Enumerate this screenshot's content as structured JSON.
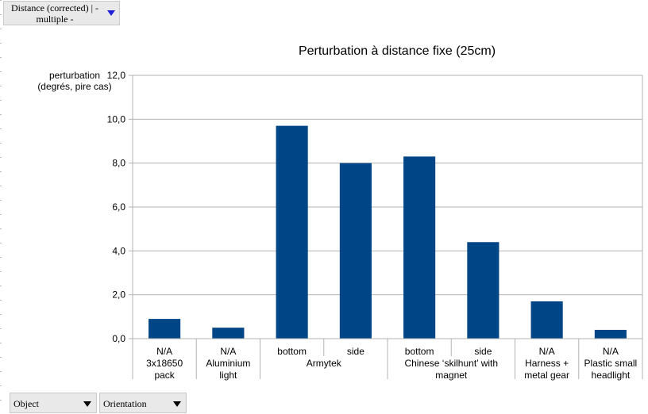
{
  "filter_button": {
    "label_line1": "Distance (corrected) | -",
    "label_line2": "multiple -",
    "arrow_icon": "triangle-down-icon"
  },
  "row_fields": [
    {
      "label": "Object",
      "arrow_icon": "triangle-down-icon"
    },
    {
      "label": "Orientation",
      "arrow_icon": "triangle-down-icon"
    }
  ],
  "chart_data": {
    "type": "bar",
    "title": "Perturbation à distance fixe (25cm)",
    "ylabel_lines": [
      "perturbation",
      "(degrés, pire cas)"
    ],
    "ylim": [
      0,
      12
    ],
    "yticks": [
      "0,0",
      "2,0",
      "4,0",
      "6,0",
      "8,0",
      "10,0",
      "12,0"
    ],
    "grid": true,
    "bar_color": "#004586",
    "groups": [
      {
        "label_lines": [
          "3x18650",
          "pack"
        ],
        "categories": [
          "N/A"
        ],
        "values": [
          0.9
        ]
      },
      {
        "label_lines": [
          "Aluminium",
          "light"
        ],
        "categories": [
          "N/A"
        ],
        "values": [
          0.5
        ]
      },
      {
        "label_lines": [
          "Armytek"
        ],
        "categories": [
          "bottom",
          "side"
        ],
        "values": [
          9.7,
          8.0
        ]
      },
      {
        "label_lines": [
          "Chinese ‘skilhunt’ with",
          "magnet"
        ],
        "categories": [
          "bottom",
          "side"
        ],
        "values": [
          8.3,
          4.4
        ]
      },
      {
        "label_lines": [
          "Harness +",
          "metal gear"
        ],
        "categories": [
          "N/A"
        ],
        "values": [
          1.7
        ]
      },
      {
        "label_lines": [
          "Plastic small",
          "headlight"
        ],
        "categories": [
          "N/A"
        ],
        "values": [
          0.4
        ]
      }
    ]
  }
}
